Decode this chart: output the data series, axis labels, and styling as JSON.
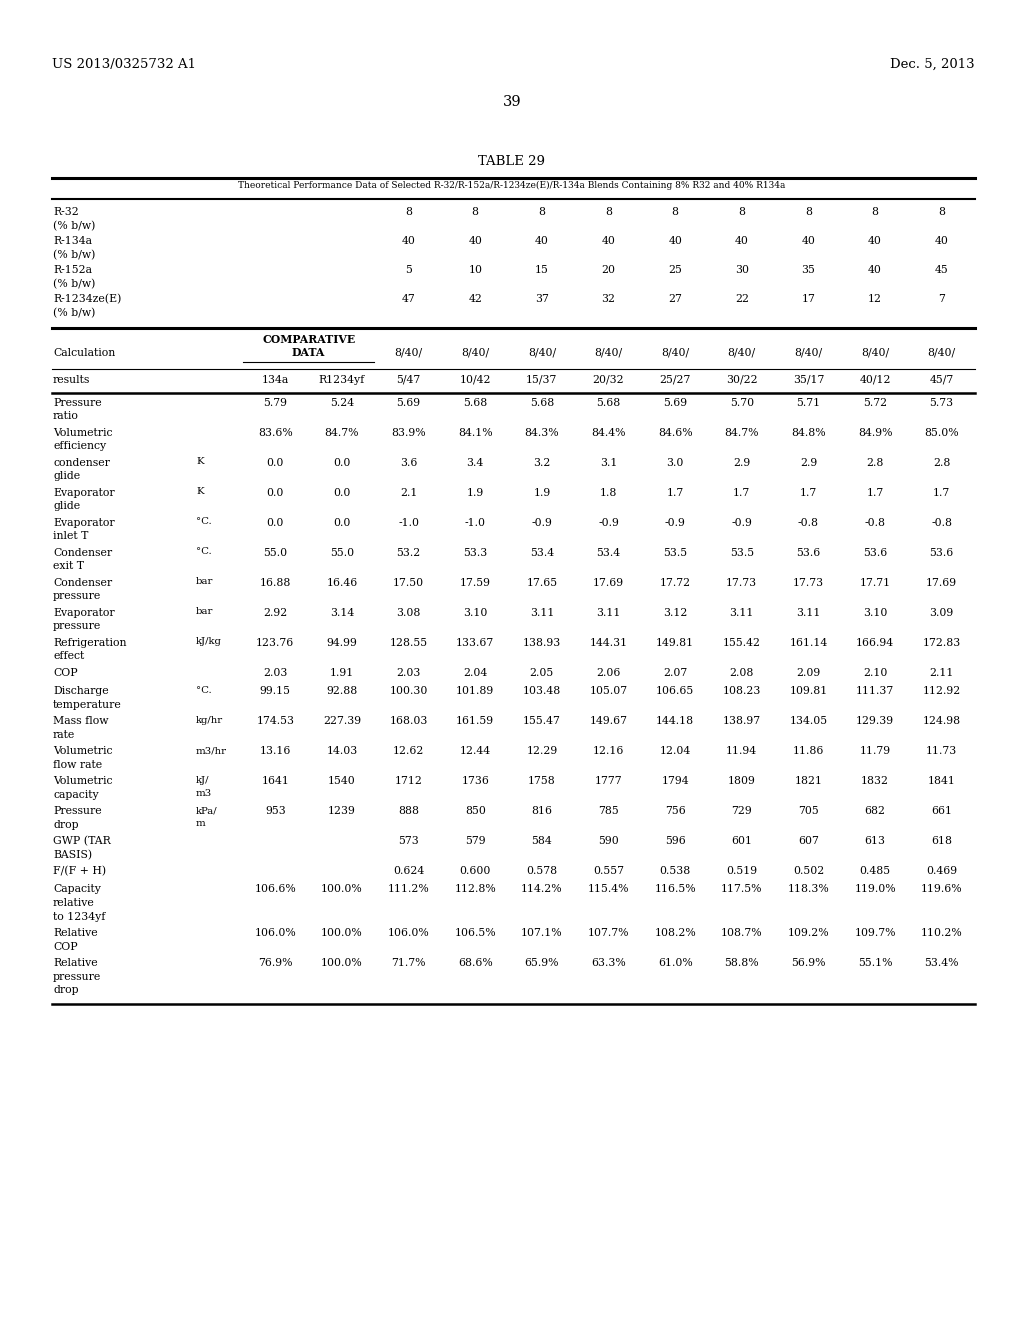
{
  "header_left": "US 2013/0325732 A1",
  "header_right": "Dec. 5, 2013",
  "page_number": "39",
  "table_title": "TABLE 29",
  "table_subtitle": "Theoretical Performance Data of Selected R-32/R-152a/R-1234ze(E)/R-134a Blends Containing 8% R32 and 40% R134a",
  "composition_rows": [
    {
      "label": "R-32",
      "sublabel": "(% b/w)",
      "values": [
        "",
        "",
        "8",
        "8",
        "8",
        "8",
        "8",
        "8",
        "8",
        "8",
        "8"
      ]
    },
    {
      "label": "R-134a",
      "sublabel": "(% b/w)",
      "values": [
        "",
        "",
        "40",
        "40",
        "40",
        "40",
        "40",
        "40",
        "40",
        "40",
        "40"
      ]
    },
    {
      "label": "R-152a",
      "sublabel": "(% b/w)",
      "values": [
        "",
        "",
        "5",
        "10",
        "15",
        "20",
        "25",
        "30",
        "35",
        "40",
        "45"
      ]
    },
    {
      "label": "R-1234ze(E)",
      "sublabel": "(% b/w)",
      "values": [
        "",
        "",
        "47",
        "42",
        "37",
        "32",
        "27",
        "22",
        "17",
        "12",
        "7"
      ]
    }
  ],
  "col_prefix": [
    "",
    "",
    "8/40/",
    "8/40/",
    "8/40/",
    "8/40/",
    "8/40/",
    "8/40/",
    "8/40/",
    "8/40/",
    "8/40/"
  ],
  "col_headers": [
    "134a",
    "R1234yf",
    "5/47",
    "10/42",
    "15/37",
    "20/32",
    "25/27",
    "30/22",
    "35/17",
    "40/12",
    "45/7"
  ],
  "data_rows": [
    {
      "label": "Pressure",
      "sublabel": "ratio",
      "unit": "",
      "values": [
        "5.79",
        "5.24",
        "5.69",
        "5.68",
        "5.68",
        "5.68",
        "5.69",
        "5.70",
        "5.71",
        "5.72",
        "5.73"
      ]
    },
    {
      "label": "Volumetric",
      "sublabel": "efficiency",
      "unit": "",
      "values": [
        "83.6%",
        "84.7%",
        "83.9%",
        "84.1%",
        "84.3%",
        "84.4%",
        "84.6%",
        "84.7%",
        "84.8%",
        "84.9%",
        "85.0%"
      ]
    },
    {
      "label": "condenser",
      "sublabel": "glide",
      "unit": "K",
      "values": [
        "0.0",
        "0.0",
        "3.6",
        "3.4",
        "3.2",
        "3.1",
        "3.0",
        "2.9",
        "2.9",
        "2.8",
        "2.8"
      ]
    },
    {
      "label": "Evaporator",
      "sublabel": "glide",
      "unit": "K",
      "values": [
        "0.0",
        "0.0",
        "2.1",
        "1.9",
        "1.9",
        "1.8",
        "1.7",
        "1.7",
        "1.7",
        "1.7",
        "1.7"
      ]
    },
    {
      "label": "Evaporator",
      "sublabel": "inlet T",
      "unit": "°C.",
      "values": [
        "0.0",
        "0.0",
        "-1.0",
        "-1.0",
        "-0.9",
        "-0.9",
        "-0.9",
        "-0.9",
        "-0.8",
        "-0.8",
        "-0.8"
      ]
    },
    {
      "label": "Condenser",
      "sublabel": "exit T",
      "unit": "°C.",
      "values": [
        "55.0",
        "55.0",
        "53.2",
        "53.3",
        "53.4",
        "53.4",
        "53.5",
        "53.5",
        "53.6",
        "53.6",
        "53.6"
      ]
    },
    {
      "label": "Condenser",
      "sublabel": "pressure",
      "unit": "bar",
      "values": [
        "16.88",
        "16.46",
        "17.50",
        "17.59",
        "17.65",
        "17.69",
        "17.72",
        "17.73",
        "17.73",
        "17.71",
        "17.69"
      ]
    },
    {
      "label": "Evaporator",
      "sublabel": "pressure",
      "unit": "bar",
      "values": [
        "2.92",
        "3.14",
        "3.08",
        "3.10",
        "3.11",
        "3.11",
        "3.12",
        "3.11",
        "3.11",
        "3.10",
        "3.09"
      ]
    },
    {
      "label": "Refrigeration",
      "sublabel": "effect",
      "unit": "kJ/kg",
      "values": [
        "123.76",
        "94.99",
        "128.55",
        "133.67",
        "138.93",
        "144.31",
        "149.81",
        "155.42",
        "161.14",
        "166.94",
        "172.83"
      ]
    },
    {
      "label": "COP",
      "sublabel": "",
      "unit": "",
      "values": [
        "2.03",
        "1.91",
        "2.03",
        "2.04",
        "2.05",
        "2.06",
        "2.07",
        "2.08",
        "2.09",
        "2.10",
        "2.11"
      ]
    },
    {
      "label": "Discharge",
      "sublabel": "temperature",
      "unit": "°C.",
      "values": [
        "99.15",
        "92.88",
        "100.30",
        "101.89",
        "103.48",
        "105.07",
        "106.65",
        "108.23",
        "109.81",
        "111.37",
        "112.92"
      ]
    },
    {
      "label": "Mass flow",
      "sublabel": "rate",
      "unit": "kg/hr",
      "values": [
        "174.53",
        "227.39",
        "168.03",
        "161.59",
        "155.47",
        "149.67",
        "144.18",
        "138.97",
        "134.05",
        "129.39",
        "124.98"
      ]
    },
    {
      "label": "Volumetric",
      "sublabel": "flow rate",
      "unit": "m3/hr",
      "values": [
        "13.16",
        "14.03",
        "12.62",
        "12.44",
        "12.29",
        "12.16",
        "12.04",
        "11.94",
        "11.86",
        "11.79",
        "11.73"
      ]
    },
    {
      "label": "Volumetric",
      "sublabel": "capacity",
      "unit": "kJ/\nm3",
      "values": [
        "1641",
        "1540",
        "1712",
        "1736",
        "1758",
        "1777",
        "1794",
        "1809",
        "1821",
        "1832",
        "1841"
      ]
    },
    {
      "label": "Pressure",
      "sublabel": "drop",
      "unit": "kPa/\nm",
      "values": [
        "953",
        "1239",
        "888",
        "850",
        "816",
        "785",
        "756",
        "729",
        "705",
        "682",
        "661"
      ]
    },
    {
      "label": "GWP (TAR",
      "sublabel": "BASIS)",
      "unit": "",
      "values": [
        "",
        "",
        "573",
        "579",
        "584",
        "590",
        "596",
        "601",
        "607",
        "613",
        "618"
      ]
    },
    {
      "label": "F/(F + H)",
      "sublabel": "",
      "unit": "",
      "values": [
        "",
        "",
        "0.624",
        "0.600",
        "0.578",
        "0.557",
        "0.538",
        "0.519",
        "0.502",
        "0.485",
        "0.469"
      ]
    },
    {
      "label": "Capacity",
      "sublabel": "relative",
      "unit": "",
      "sublabel2": "to 1234yf",
      "values": [
        "106.6%",
        "100.0%",
        "111.2%",
        "112.8%",
        "114.2%",
        "115.4%",
        "116.5%",
        "117.5%",
        "118.3%",
        "119.0%",
        "119.6%"
      ]
    },
    {
      "label": "Relative",
      "sublabel": "COP",
      "unit": "",
      "values": [
        "106.0%",
        "100.0%",
        "106.0%",
        "106.5%",
        "107.1%",
        "107.7%",
        "108.2%",
        "108.7%",
        "109.2%",
        "109.7%",
        "110.2%"
      ]
    },
    {
      "label": "Relative",
      "sublabel": "pressure",
      "unit": "",
      "sublabel2": "drop",
      "values": [
        "76.9%",
        "100.0%",
        "71.7%",
        "68.6%",
        "65.9%",
        "63.3%",
        "61.0%",
        "58.8%",
        "56.9%",
        "55.1%",
        "53.4%"
      ]
    }
  ],
  "background_color": "#ffffff",
  "text_color": "#000000"
}
